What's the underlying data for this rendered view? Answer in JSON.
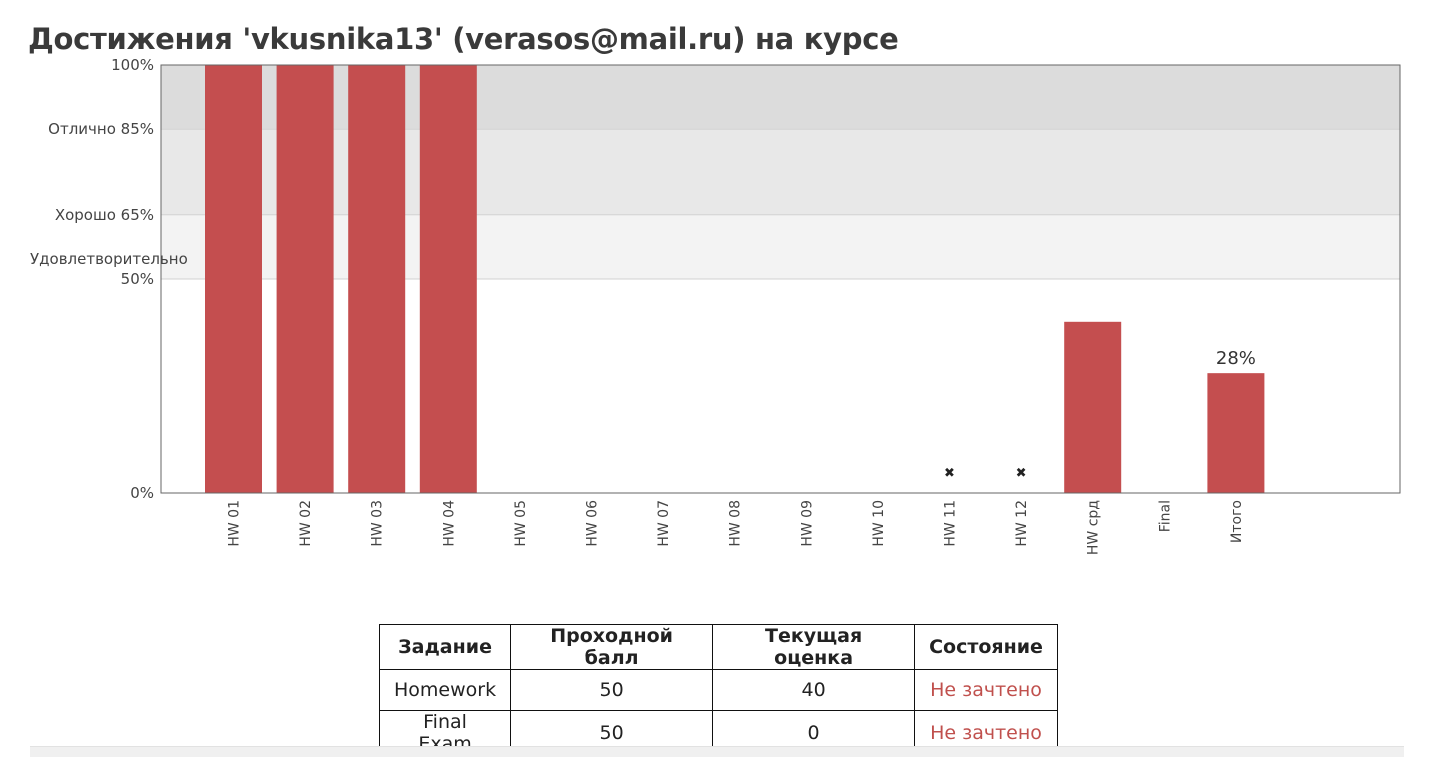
{
  "page": {
    "title": "Достижения 'vkusnika13' (verasos@mail.ru) на курсе"
  },
  "chart_data": {
    "type": "bar",
    "categories": [
      "HW 01",
      "HW 02",
      "HW 03",
      "HW 04",
      "HW 05",
      "HW 06",
      "HW 07",
      "HW 08",
      "HW 09",
      "HW 10",
      "HW 11",
      "HW 12",
      "HW срд",
      "Final",
      "Итого"
    ],
    "values": [
      100,
      100,
      100,
      100,
      0,
      0,
      0,
      0,
      0,
      0,
      0,
      0,
      40,
      0,
      28
    ],
    "unsubmitted_markers": [
      "HW 11",
      "HW 12"
    ],
    "marker_symbol": "✖",
    "data_labels": [
      {
        "category": "Итого",
        "text": "28%"
      }
    ],
    "ylim": [
      0,
      100
    ],
    "y_ticks": [
      {
        "value": 100,
        "lines": [
          "100%"
        ]
      },
      {
        "value": 85,
        "lines": [
          "Отлично 85%"
        ]
      },
      {
        "value": 65,
        "lines": [
          "Хорошо 65%"
        ]
      },
      {
        "value": 50,
        "lines": [
          "Удовлетворительно",
          "50%"
        ]
      },
      {
        "value": 0,
        "lines": [
          "0%"
        ]
      }
    ],
    "bands": [
      {
        "from": 85,
        "to": 100,
        "color": "#dcdcdc"
      },
      {
        "from": 65,
        "to": 85,
        "color": "#e8e8e8"
      },
      {
        "from": 50,
        "to": 65,
        "color": "#f3f3f3"
      }
    ],
    "bar_color": "#c44e4f",
    "xlabel": "",
    "ylabel": "",
    "grid": true
  },
  "table": {
    "headers": [
      "Задание",
      "Проходной балл",
      "Текущая оценка",
      "Состояние"
    ],
    "rows": [
      {
        "task": "Homework",
        "pass": "50",
        "current": "40",
        "status": "Не зачтено"
      },
      {
        "task": "Final Exam",
        "pass": "50",
        "current": "0",
        "status": "Не зачтено"
      }
    ]
  },
  "colors": {
    "fail": "#c0504d"
  }
}
